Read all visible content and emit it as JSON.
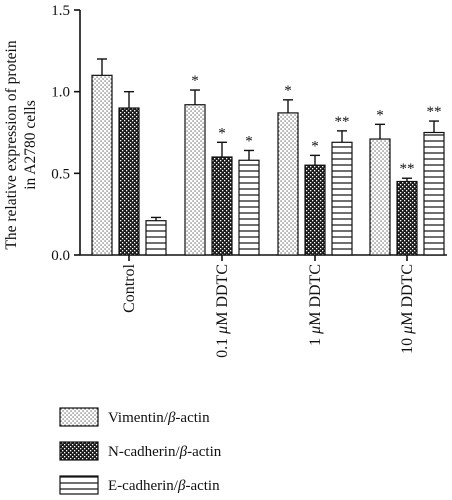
{
  "chart_data": {
    "type": "bar",
    "title": "",
    "ylabel_lines": [
      "The relative expression of protein",
      "in A2780 cells"
    ],
    "xlabel": "",
    "ylim": [
      0,
      1.5
    ],
    "yticks": [
      "0.0",
      "0.5",
      "1.0",
      "1.5"
    ],
    "ytick_values": [
      0,
      0.5,
      1.0,
      1.5
    ],
    "categories": [
      {
        "prefix": "",
        "mu": "",
        "suffix": "Control"
      },
      {
        "prefix": "0.1 ",
        "mu": "μ",
        "suffix": "M DDTC"
      },
      {
        "prefix": "1 ",
        "mu": "μ",
        "suffix": "M DDTC"
      },
      {
        "prefix": "10 ",
        "mu": "μ",
        "suffix": "M DDTC"
      }
    ],
    "series": [
      {
        "name": "Vimentin/β-actin",
        "name_parts": [
          "Vimentin/",
          "β",
          "-actin"
        ],
        "pattern": "dots",
        "values": [
          1.1,
          0.92,
          0.87,
          0.71
        ],
        "errors": [
          0.1,
          0.09,
          0.08,
          0.09
        ],
        "significance": [
          "",
          "*",
          "*",
          "*"
        ]
      },
      {
        "name": "N-cadherin/β-actin",
        "name_parts": [
          "N-cadherin/",
          "β",
          "-actin"
        ],
        "pattern": "crosshatch",
        "values": [
          0.9,
          0.6,
          0.55,
          0.45
        ],
        "errors": [
          0.1,
          0.09,
          0.06,
          0.02
        ],
        "significance": [
          "",
          "*",
          "*",
          "**"
        ]
      },
      {
        "name": "E-cadherin/β-actin",
        "name_parts": [
          "E-cadherin/",
          "β",
          "-actin"
        ],
        "pattern": "hlines",
        "values": [
          0.21,
          0.58,
          0.69,
          0.75
        ],
        "errors": [
          0.02,
          0.06,
          0.07,
          0.07
        ],
        "significance": [
          "",
          "*",
          "**",
          "**"
        ]
      }
    ],
    "legend_position": "bottom-left",
    "grid": false
  }
}
